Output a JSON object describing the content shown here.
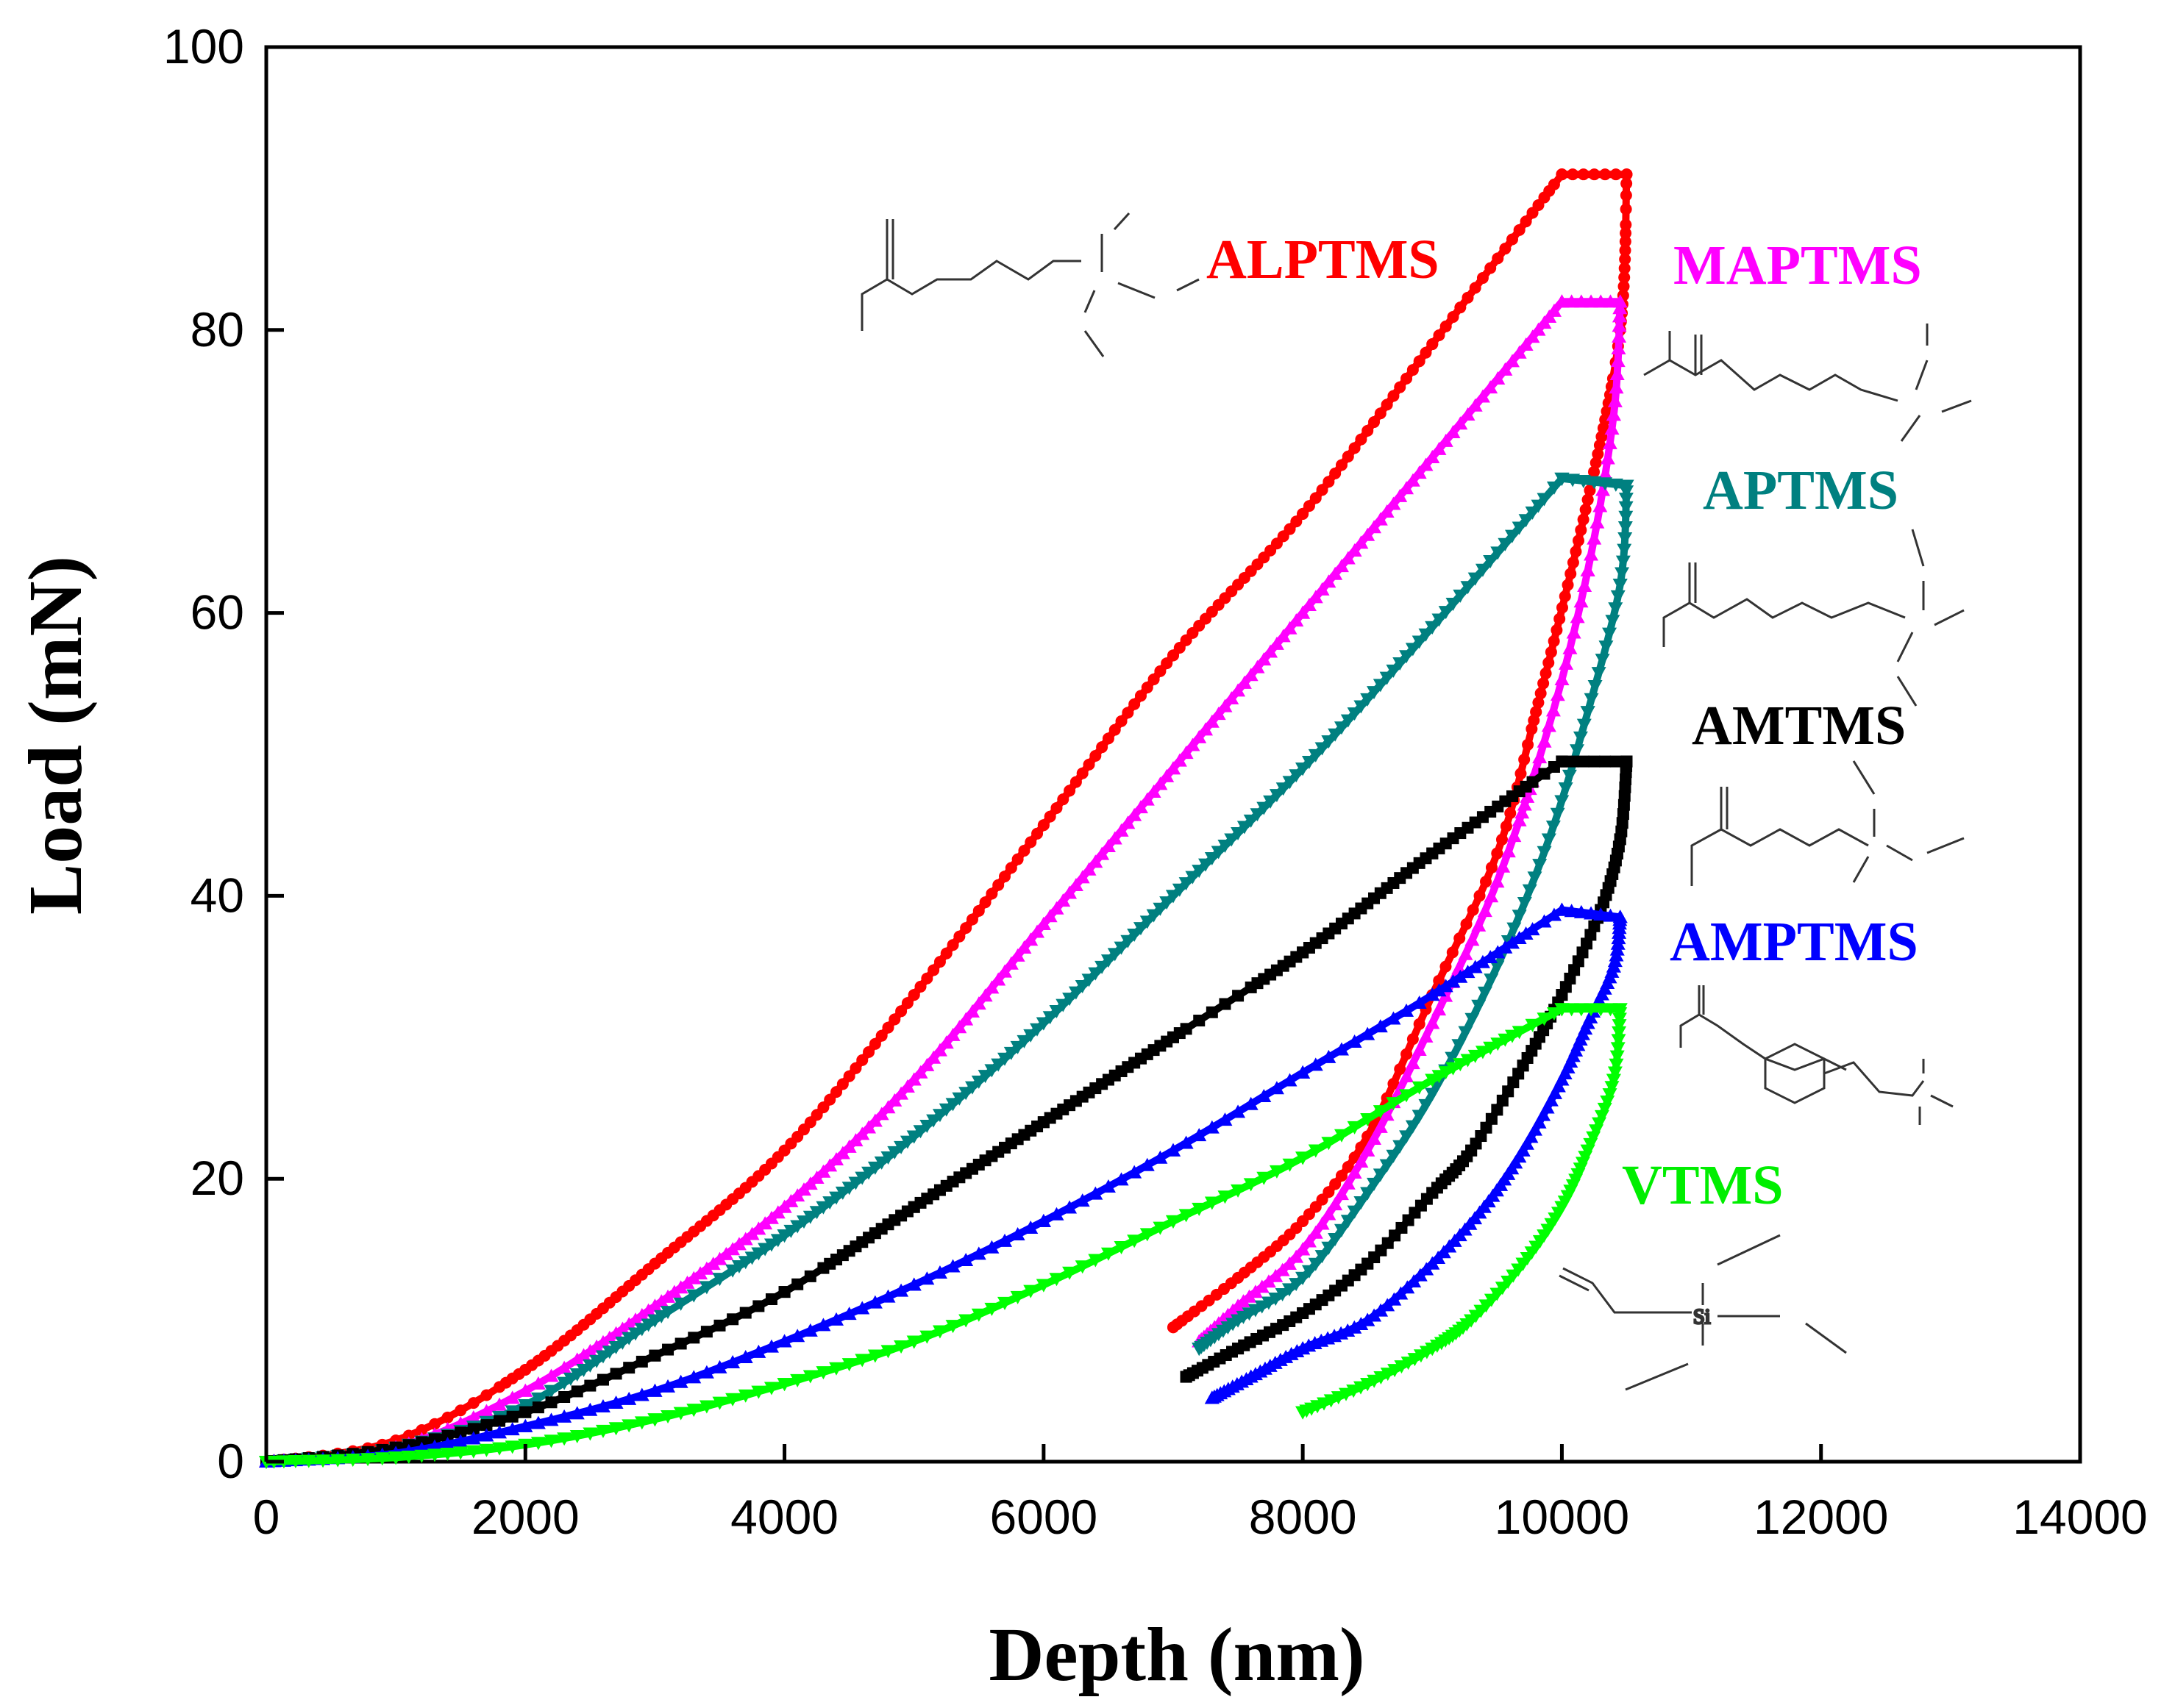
{
  "chart_data": {
    "type": "line",
    "xlabel": "Depth (nm)",
    "ylabel": "Load (mN)",
    "xlim": [
      0,
      14000
    ],
    "ylim": [
      0,
      100
    ],
    "x_ticks": [
      0,
      2000,
      4000,
      6000,
      8000,
      10000,
      12000,
      14000
    ],
    "y_ticks": [
      0,
      20,
      40,
      60,
      80,
      100
    ],
    "grid": false,
    "legend": "inline labels to the right of curves",
    "series": [
      {
        "name": "ALPTMS",
        "color": "#ff0000",
        "marker": "circle",
        "loading": [
          [
            0,
            0
          ],
          [
            1000,
            1.5
          ],
          [
            2000,
            6.5
          ],
          [
            3000,
            14
          ],
          [
            4000,
            22
          ],
          [
            5000,
            33
          ],
          [
            6000,
            45
          ],
          [
            7000,
            57
          ],
          [
            8000,
            67
          ],
          [
            9000,
            79
          ],
          [
            10000,
            91
          ]
        ],
        "hold": [
          [
            10000,
            91
          ],
          [
            10500,
            91
          ]
        ],
        "unloading": [
          [
            10500,
            91
          ],
          [
            10450,
            80
          ],
          [
            10200,
            68
          ],
          [
            9800,
            53
          ],
          [
            9500,
            43
          ],
          [
            9000,
            33
          ],
          [
            8500,
            23
          ],
          [
            8000,
            17
          ],
          [
            7500,
            13
          ],
          [
            7000,
            9.5
          ]
        ]
      },
      {
        "name": "MAPTMS",
        "color": "#ff00ff",
        "marker": "triangle-up",
        "loading": [
          [
            0,
            0
          ],
          [
            1000,
            1
          ],
          [
            2000,
            5
          ],
          [
            3000,
            11
          ],
          [
            4000,
            18
          ],
          [
            5000,
            27
          ],
          [
            6000,
            38
          ],
          [
            7000,
            49
          ],
          [
            8000,
            60
          ],
          [
            9000,
            71
          ],
          [
            10000,
            82
          ]
        ],
        "hold": [
          [
            10000,
            82
          ],
          [
            10450,
            82
          ]
        ],
        "unloading": [
          [
            10450,
            82
          ],
          [
            10400,
            74
          ],
          [
            10200,
            63
          ],
          [
            9900,
            52
          ],
          [
            9500,
            41
          ],
          [
            9000,
            31
          ],
          [
            8500,
            22
          ],
          [
            8000,
            15
          ],
          [
            7500,
            11
          ],
          [
            7200,
            8.5
          ]
        ]
      },
      {
        "name": "APTMS",
        "color": "#008080",
        "marker": "triangle-down",
        "loading": [
          [
            0,
            0
          ],
          [
            1000,
            1
          ],
          [
            2000,
            4
          ],
          [
            3000,
            10
          ],
          [
            4000,
            16
          ],
          [
            5000,
            23
          ],
          [
            6000,
            31
          ],
          [
            7000,
            40
          ],
          [
            8000,
            49
          ],
          [
            9000,
            59
          ],
          [
            10000,
            69.5
          ]
        ],
        "hold": [
          [
            10000,
            69.5
          ],
          [
            10500,
            69
          ]
        ],
        "unloading": [
          [
            10500,
            69
          ],
          [
            10450,
            62
          ],
          [
            10200,
            53
          ],
          [
            9900,
            44
          ],
          [
            9500,
            35
          ],
          [
            9000,
            26
          ],
          [
            8500,
            19
          ],
          [
            8000,
            13
          ],
          [
            7500,
            10
          ],
          [
            7200,
            8
          ]
        ]
      },
      {
        "name": "AMTMS",
        "color": "#000000",
        "marker": "square",
        "loading": [
          [
            0,
            0
          ],
          [
            1000,
            1
          ],
          [
            2000,
            3.5
          ],
          [
            3000,
            7.5
          ],
          [
            4000,
            12
          ],
          [
            5000,
            18
          ],
          [
            6000,
            24
          ],
          [
            7000,
            30
          ],
          [
            8000,
            36
          ],
          [
            9000,
            43
          ],
          [
            10000,
            49.5
          ]
        ],
        "hold": [
          [
            10000,
            49.5
          ],
          [
            10500,
            49.5
          ]
        ],
        "unloading": [
          [
            10500,
            49.5
          ],
          [
            10450,
            44
          ],
          [
            10300,
            39
          ],
          [
            10000,
            33
          ],
          [
            9700,
            28
          ],
          [
            9300,
            22
          ],
          [
            9000,
            19
          ],
          [
            8500,
            14
          ],
          [
            8000,
            10.5
          ],
          [
            7500,
            8
          ],
          [
            7100,
            6
          ]
        ]
      },
      {
        "name": "AMPTMS",
        "color": "#0000ff",
        "marker": "triangle-up",
        "loading": [
          [
            0,
            0
          ],
          [
            1000,
            0.6
          ],
          [
            2000,
            2.5
          ],
          [
            3000,
            5
          ],
          [
            4000,
            8.5
          ],
          [
            5000,
            12.5
          ],
          [
            6000,
            17
          ],
          [
            7000,
            22
          ],
          [
            8000,
            27.5
          ],
          [
            9000,
            33
          ],
          [
            10000,
            39
          ]
        ],
        "hold": [
          [
            10000,
            39
          ],
          [
            10450,
            38.5
          ]
        ],
        "unloading": [
          [
            10450,
            38.5
          ],
          [
            10400,
            35
          ],
          [
            10200,
            31
          ],
          [
            10000,
            27
          ],
          [
            9700,
            22
          ],
          [
            9400,
            18
          ],
          [
            9000,
            14
          ],
          [
            8500,
            10
          ],
          [
            8000,
            8
          ],
          [
            7600,
            6
          ],
          [
            7300,
            4.5
          ]
        ]
      },
      {
        "name": "VTMS",
        "color": "#00ff00",
        "marker": "triangle-down",
        "loading": [
          [
            0,
            0
          ],
          [
            1000,
            0.3
          ],
          [
            2000,
            1.2
          ],
          [
            3000,
            3
          ],
          [
            4000,
            5.5
          ],
          [
            5000,
            8.5
          ],
          [
            6000,
            12.5
          ],
          [
            7000,
            17
          ],
          [
            8000,
            21.5
          ],
          [
            9000,
            27
          ],
          [
            10000,
            32
          ]
        ],
        "hold": [
          [
            10000,
            32
          ],
          [
            10450,
            32
          ]
        ],
        "unloading": [
          [
            10450,
            32
          ],
          [
            10400,
            27
          ],
          [
            10200,
            22
          ],
          [
            10000,
            18
          ],
          [
            9700,
            14
          ],
          [
            9300,
            10
          ],
          [
            9000,
            8
          ],
          [
            8500,
            5.5
          ],
          [
            8000,
            3.5
          ]
        ]
      }
    ]
  }
}
